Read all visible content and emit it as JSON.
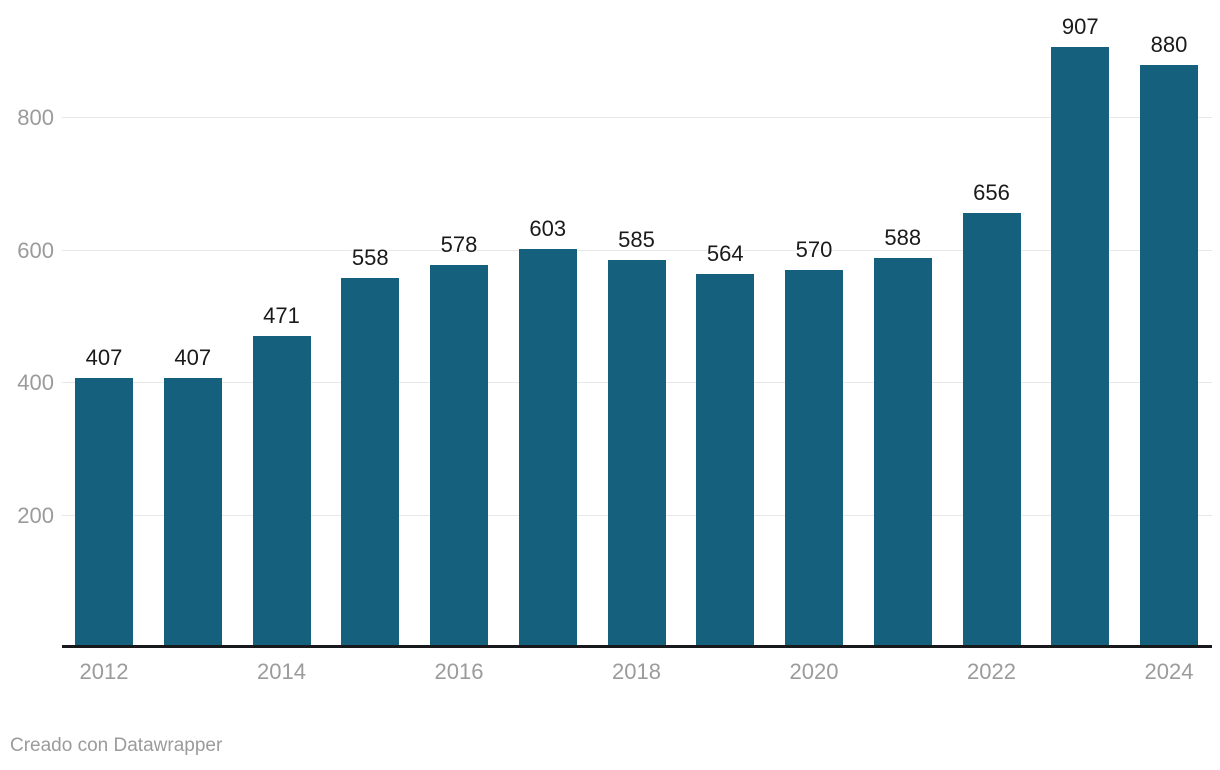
{
  "chart_data": {
    "type": "bar",
    "categories": [
      "2012",
      "2013",
      "2014",
      "2015",
      "2016",
      "2017",
      "2018",
      "2019",
      "2020",
      "2021",
      "2022",
      "2023",
      "2024"
    ],
    "values": [
      407,
      407,
      471,
      558,
      578,
      603,
      585,
      564,
      570,
      588,
      656,
      907,
      880
    ],
    "title": "",
    "xlabel": "",
    "ylabel": "",
    "ylim": [
      0,
      978
    ],
    "y_ticks": [
      200,
      400,
      600,
      800
    ],
    "x_tick_labels": [
      "2012",
      "2014",
      "2016",
      "2018",
      "2020",
      "2022",
      "2024"
    ],
    "x_label_every": 2,
    "grid": true,
    "legend": false,
    "value_labels_shown": true,
    "bar_color": "#15607d",
    "value_label_color": "#1a1a1a",
    "tick_label_color": "#9b9b9b",
    "gridline_color": "#e8e8e8",
    "axis_line_color": "#18191c"
  },
  "footer": {
    "attribution": "Creado con Datawrapper"
  }
}
